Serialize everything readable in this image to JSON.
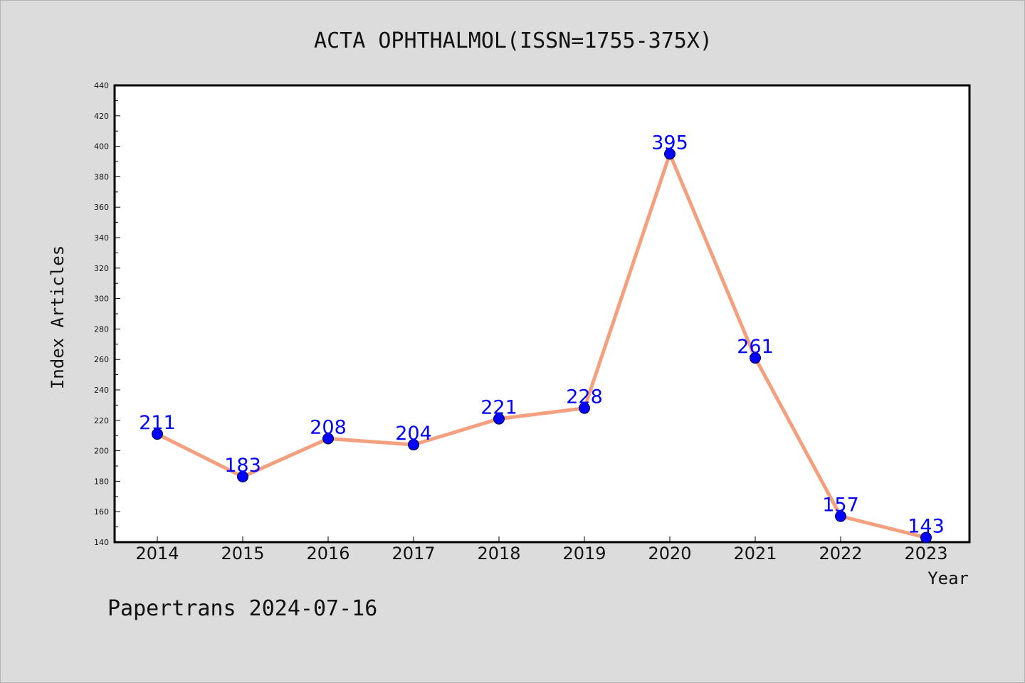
{
  "chart_data": {
    "type": "line",
    "title": "ACTA OPHTHALMOL(ISSN=1755-375X)",
    "xlabel": "Year",
    "ylabel": "Index Articles",
    "categories": [
      "2014",
      "2015",
      "2016",
      "2017",
      "2018",
      "2019",
      "2020",
      "2021",
      "2022",
      "2023"
    ],
    "values": [
      211,
      183,
      208,
      204,
      221,
      228,
      395,
      261,
      157,
      143
    ],
    "ylim": [
      140,
      440
    ],
    "yticks": [
      140,
      160,
      180,
      200,
      220,
      240,
      260,
      280,
      300,
      320,
      340,
      360,
      380,
      400,
      420,
      440
    ],
    "line_color": "#f4a07e",
    "marker_color": "#0000ff",
    "label_color": "#0000ff",
    "grid": false,
    "legend": "none"
  },
  "footer": "Papertrans 2024-07-16"
}
